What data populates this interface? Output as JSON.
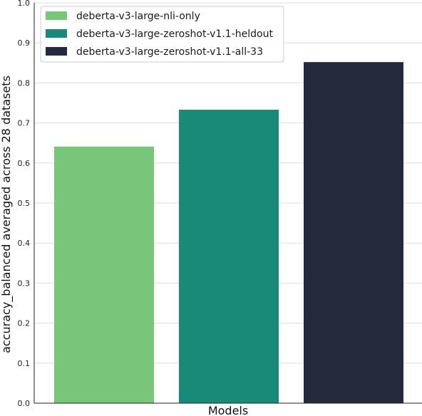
{
  "chart_data": {
    "type": "bar",
    "categories": [
      "deberta-v3-large-nli-only",
      "deberta-v3-large-zeroshot-v1.1-heldout",
      "deberta-v3-large-zeroshot-v1.1-all-33"
    ],
    "values": [
      0.641,
      0.733,
      0.852
    ],
    "colors": [
      "#78c679",
      "#1a8a78",
      "#242a3c"
    ],
    "xlabel": "Models",
    "ylabel": "accuracy_balanced averaged across 28 datasets",
    "ylim": [
      0,
      1.0
    ],
    "yticks": [
      "0.0",
      "0.1",
      "0.2",
      "0.3",
      "0.4",
      "0.5",
      "0.6",
      "0.7",
      "0.8",
      "0.9",
      "1.0"
    ],
    "grid": "horizontal",
    "legend": {
      "position": "top-left",
      "entries": [
        "deberta-v3-large-nli-only",
        "deberta-v3-large-zeroshot-v1.1-heldout",
        "deberta-v3-large-zeroshot-v1.1-all-33"
      ]
    }
  }
}
